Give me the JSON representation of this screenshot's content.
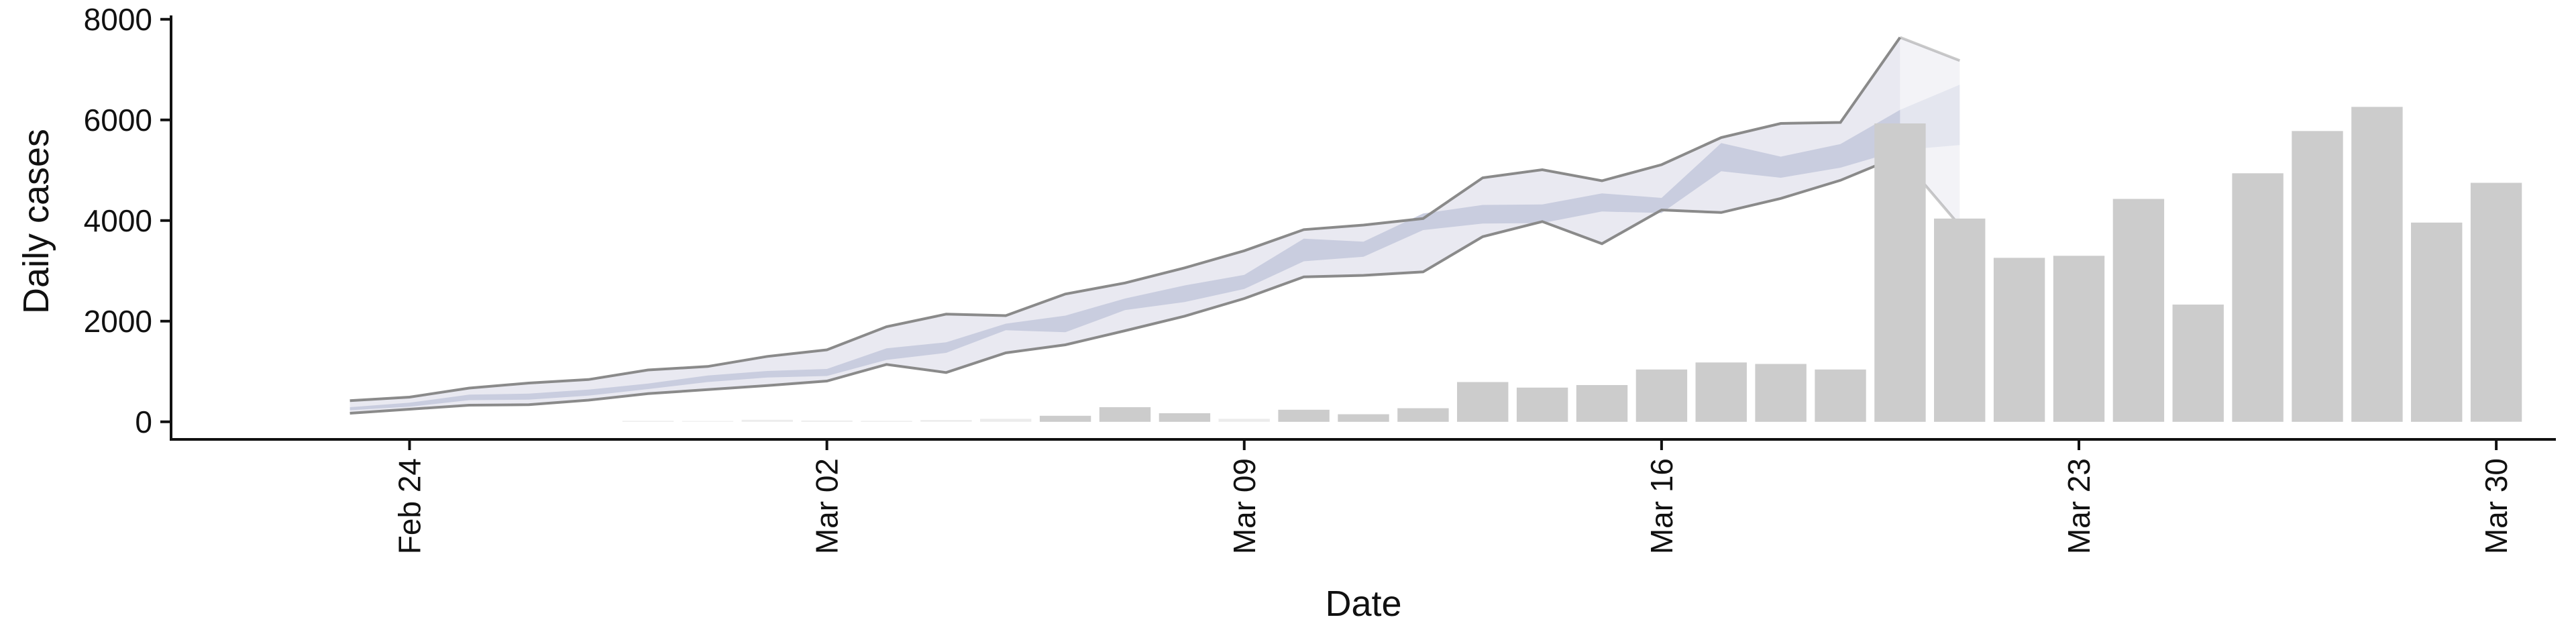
{
  "chart_data": {
    "type": "bar",
    "title": "",
    "xlabel": "Date",
    "ylabel": "Daily cases",
    "ylim": [
      -350,
      8050
    ],
    "xlim": [
      "2020-02-20",
      "2020-03-31"
    ],
    "xticks": [
      {
        "date": "2020-02-24",
        "label": "Feb 24"
      },
      {
        "date": "2020-03-02",
        "label": "Mar 02"
      },
      {
        "date": "2020-03-09",
        "label": "Mar 09"
      },
      {
        "date": "2020-03-16",
        "label": "Mar 16"
      },
      {
        "date": "2020-03-23",
        "label": "Mar 23"
      },
      {
        "date": "2020-03-30",
        "label": "Mar 30"
      }
    ],
    "yticks": [
      0,
      2000,
      4000,
      6000,
      8000
    ],
    "grid": false,
    "colors": {
      "bars": "#cccccc",
      "bars_faint": "#ececec",
      "outer_band": "#e9e9f1",
      "inner_band": "#c9cddf",
      "bound_line": "#8a8a8a",
      "axis": "#111111"
    },
    "bars": [
      {
        "date": "2020-02-28",
        "value": 20
      },
      {
        "date": "2020-02-29",
        "value": 15
      },
      {
        "date": "2020-03-01",
        "value": 40
      },
      {
        "date": "2020-03-02",
        "value": 25
      },
      {
        "date": "2020-03-03",
        "value": 20
      },
      {
        "date": "2020-03-04",
        "value": 35
      },
      {
        "date": "2020-03-05",
        "value": 60
      },
      {
        "date": "2020-03-06",
        "value": 120
      },
      {
        "date": "2020-03-07",
        "value": 290
      },
      {
        "date": "2020-03-08",
        "value": 170
      },
      {
        "date": "2020-03-09",
        "value": 60
      },
      {
        "date": "2020-03-10",
        "value": 240
      },
      {
        "date": "2020-03-11",
        "value": 150
      },
      {
        "date": "2020-03-12",
        "value": 270
      },
      {
        "date": "2020-03-13",
        "value": 790
      },
      {
        "date": "2020-03-14",
        "value": 680
      },
      {
        "date": "2020-03-15",
        "value": 730
      },
      {
        "date": "2020-03-16",
        "value": 1040
      },
      {
        "date": "2020-03-17",
        "value": 1180
      },
      {
        "date": "2020-03-18",
        "value": 1150
      },
      {
        "date": "2020-03-19",
        "value": 1040
      },
      {
        "date": "2020-03-20",
        "value": 5930
      },
      {
        "date": "2020-03-21",
        "value": 4040
      },
      {
        "date": "2020-03-22",
        "value": 3260
      },
      {
        "date": "2020-03-23",
        "value": 3300
      },
      {
        "date": "2020-03-24",
        "value": 4430
      },
      {
        "date": "2020-03-25",
        "value": 2330
      },
      {
        "date": "2020-03-26",
        "value": 4940
      },
      {
        "date": "2020-03-27",
        "value": 5780
      },
      {
        "date": "2020-03-28",
        "value": 6260
      },
      {
        "date": "2020-03-29",
        "value": 3960
      },
      {
        "date": "2020-03-30",
        "value": 4750
      }
    ],
    "bands": {
      "dates": [
        "2020-02-23",
        "2020-02-24",
        "2020-02-25",
        "2020-02-26",
        "2020-02-27",
        "2020-02-28",
        "2020-02-29",
        "2020-03-01",
        "2020-03-02",
        "2020-03-03",
        "2020-03-04",
        "2020-03-05",
        "2020-03-06",
        "2020-03-07",
        "2020-03-08",
        "2020-03-09",
        "2020-03-10",
        "2020-03-11",
        "2020-03-12",
        "2020-03-13",
        "2020-03-14",
        "2020-03-15",
        "2020-03-16",
        "2020-03-17",
        "2020-03-18",
        "2020-03-19",
        "2020-03-20"
      ],
      "outer_upper": [
        420,
        490,
        670,
        770,
        840,
        1030,
        1100,
        1300,
        1430,
        1890,
        2140,
        2110,
        2540,
        2760,
        3060,
        3400,
        3820,
        3910,
        4040,
        4850,
        5010,
        4790,
        5110,
        5650,
        5930,
        5950,
        7640
      ],
      "outer_lower": [
        170,
        250,
        330,
        340,
        430,
        560,
        640,
        720,
        810,
        1140,
        980,
        1370,
        1530,
        1810,
        2100,
        2450,
        2880,
        2910,
        2980,
        3680,
        3980,
        3540,
        4210,
        4160,
        4440,
        4800,
        5290
      ],
      "inner_upper": [
        290,
        380,
        540,
        560,
        640,
        760,
        920,
        1010,
        1050,
        1460,
        1580,
        1950,
        2110,
        2450,
        2710,
        2920,
        3640,
        3580,
        4140,
        4310,
        4320,
        4540,
        4450,
        5540,
        5270,
        5520,
        6200
      ],
      "inner_lower": [
        230,
        300,
        430,
        440,
        520,
        650,
        790,
        880,
        910,
        1230,
        1370,
        1820,
        1780,
        2220,
        2380,
        2640,
        3190,
        3280,
        3810,
        3940,
        3950,
        4180,
        4150,
        4980,
        4850,
        5050,
        5400
      ],
      "fade_dates": [
        "2020-03-20",
        "2020-03-21"
      ],
      "fade_outer_upper": [
        7640,
        7180
      ],
      "fade_outer_lower": [
        5290,
        3900
      ],
      "fade_inner_upper": [
        6200,
        6700
      ],
      "fade_inner_lower": [
        5400,
        5500
      ]
    }
  }
}
